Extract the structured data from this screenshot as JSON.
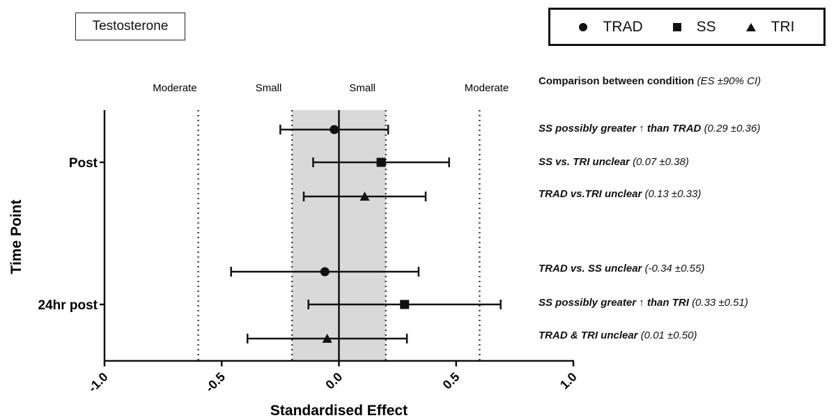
{
  "panel_label": "Testosterone",
  "legend": [
    {
      "label": "TRAD",
      "marker": "circle"
    },
    {
      "label": "SS",
      "marker": "square"
    },
    {
      "label": "TRI",
      "marker": "triangle"
    }
  ],
  "comparison_header": {
    "text": "Comparison between condition",
    "note": "(ES ±90% CI)"
  },
  "comparisons": [
    {
      "text": "SS possibly greater ↑ than TRAD",
      "value": "(0.29 ±0.36)"
    },
    {
      "text": "SS vs. TRI unclear",
      "value": "(0.07 ±0.38)"
    },
    {
      "text": "TRAD vs.TRI unclear",
      "value": "(0.13 ±0.33)"
    },
    {
      "text": "TRAD vs. SS unclear",
      "value": "(-0.34 ±0.55)"
    },
    {
      "text": "SS possibly greater ↑ than TRI",
      "value": "(0.33 ±0.51)"
    },
    {
      "text": "TRAD & TRI unclear",
      "value": "(0.01 ±0.50)"
    }
  ],
  "chart_data": {
    "type": "forest",
    "xlabel": "Standardised Effect",
    "ylabel": "Time Point",
    "xlim": [
      -1.0,
      1.0
    ],
    "xticks": [
      "-1.0",
      "-0.5",
      "0.0",
      "0.5",
      "1.0"
    ],
    "categories": [
      "Post",
      "24hr post"
    ],
    "zone_labels": [
      {
        "label": "Moderate",
        "at": -0.7
      },
      {
        "label": "Small",
        "at": -0.3
      },
      {
        "label": "Small",
        "at": 0.1
      },
      {
        "label": "Moderate",
        "at": 0.63
      }
    ],
    "threshold_lines": [
      -0.6,
      -0.2,
      0.2,
      0.6
    ],
    "trivial_band": [
      -0.2,
      0.2
    ],
    "band_color": "#d9d9d9",
    "points": [
      {
        "group": "Post",
        "marker": "circle",
        "es": -0.02,
        "lower": -0.25,
        "upper": 0.21
      },
      {
        "group": "Post",
        "marker": "square",
        "es": 0.18,
        "lower": -0.11,
        "upper": 0.47
      },
      {
        "group": "Post",
        "marker": "triangle",
        "es": 0.11,
        "lower": -0.15,
        "upper": 0.37
      },
      {
        "group": "24hr post",
        "marker": "circle",
        "es": -0.06,
        "lower": -0.46,
        "upper": 0.34
      },
      {
        "group": "24hr post",
        "marker": "square",
        "es": 0.28,
        "lower": -0.13,
        "upper": 0.69
      },
      {
        "group": "24hr post",
        "marker": "triangle",
        "es": -0.05,
        "lower": -0.39,
        "upper": 0.29
      }
    ]
  }
}
